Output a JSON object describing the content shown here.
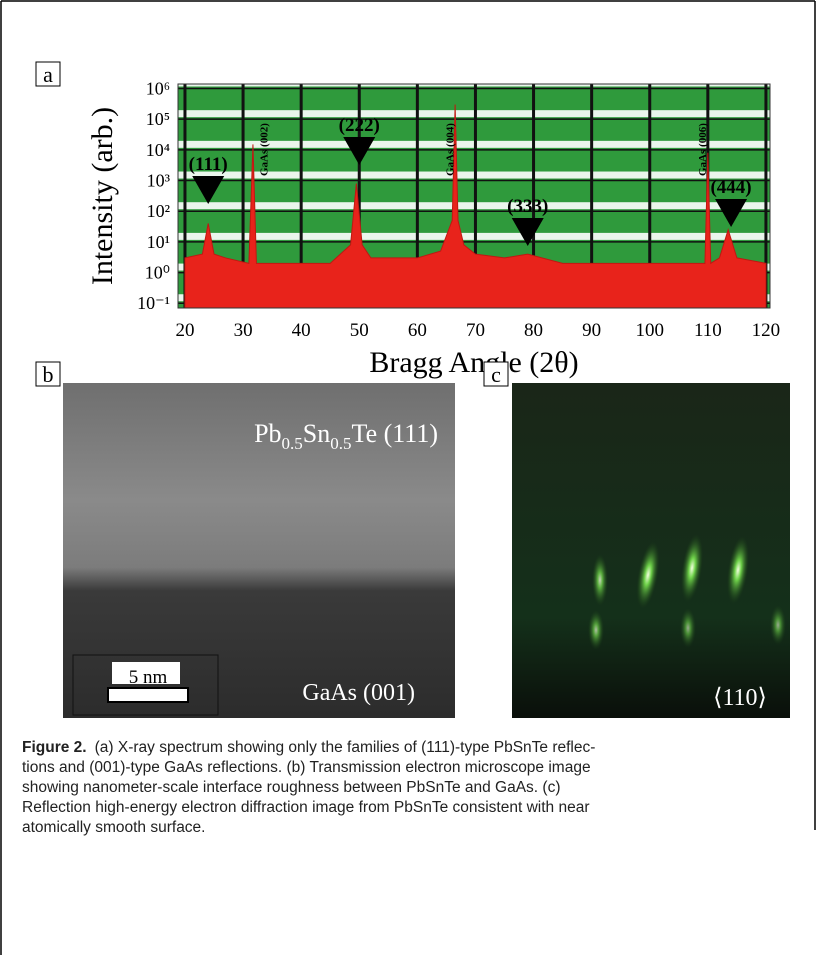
{
  "chart_data": {
    "type": "area",
    "panel_label": "a",
    "y_label": "Intensity (arb.)",
    "x_label": "Bragg Angle (2θ)",
    "x": [
      20,
      23,
      24,
      25,
      27,
      31,
      31.7,
      32.3,
      35,
      45,
      48.5,
      49.5,
      50.5,
      52,
      60,
      64,
      66,
      66.5,
      67,
      68,
      70,
      75,
      79,
      85,
      95,
      105,
      109.5,
      110,
      110.5,
      112,
      113.5,
      115,
      120
    ],
    "values": [
      3,
      4,
      40,
      4,
      3,
      2,
      15000,
      2,
      2,
      2,
      8,
      800,
      8,
      3,
      3,
      5,
      50,
      300000,
      50,
      8,
      4,
      3,
      4,
      2,
      2,
      2,
      2,
      8000,
      2,
      3,
      25,
      3,
      2
    ],
    "color": "#e8231b",
    "background": "#2f9a3c",
    "grid": true,
    "log_y": true,
    "xlim": [
      18.8,
      120.7
    ],
    "ylim": [
      0.07,
      1400000
    ],
    "xticks": [
      20,
      30,
      40,
      50,
      60,
      70,
      80,
      90,
      100,
      110,
      120
    ],
    "yticks": [
      {
        "value": 0.1,
        "label": "10⁻¹"
      },
      {
        "value": 1,
        "label": "10⁰"
      },
      {
        "value": 10,
        "label": "10¹"
      },
      {
        "value": 100,
        "label": "10²"
      },
      {
        "value": 1000,
        "label": "10³"
      },
      {
        "value": 10000,
        "label": "10⁴"
      },
      {
        "value": 100000,
        "label": "10⁵"
      },
      {
        "value": 1000000,
        "label": "10⁶"
      }
    ],
    "annotations": [
      {
        "text": "(111)",
        "x": 24,
        "kind": "peak"
      },
      {
        "text": "GaAs (002)",
        "x": 33.5,
        "kind": "substrate"
      },
      {
        "text": "(222)",
        "x": 50,
        "kind": "peak"
      },
      {
        "text": "GaAs (004)",
        "x": 65.5,
        "kind": "substrate"
      },
      {
        "text": "(333)",
        "x": 79,
        "kind": "peak"
      },
      {
        "text": "GaAs (006)",
        "x": 109,
        "kind": "substrate"
      },
      {
        "text": "(444)",
        "x": 114,
        "kind": "peak"
      }
    ]
  },
  "panel_b": {
    "panel_label": "b",
    "top_label": [
      "Pb",
      "0.5",
      "Sn",
      "0.5",
      "Te (111)"
    ],
    "bottom_label": "GaAs (001)",
    "scale_bar": "5 nm"
  },
  "panel_c": {
    "panel_label": "c",
    "label": "⟨110⟩"
  },
  "caption": {
    "lead": "Figure 2.",
    "lines": [
      "(a) X-ray spectrum showing only the families of (111)-type PbSnTe reflec-",
      "tions and (001)-type GaAs reflections. (b) Transmission electron microscope image",
      "showing nanometer-scale interface roughness between PbSnTe and GaAs. (c)",
      "Reflection high-energy electron diffraction image from PbSnTe consistent with near",
      "atomically smooth surface."
    ]
  }
}
